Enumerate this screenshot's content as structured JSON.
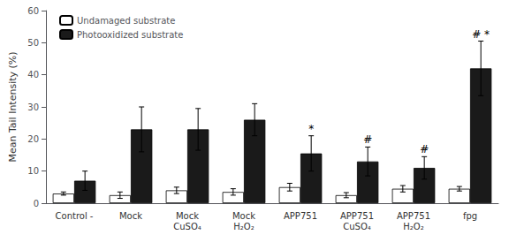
{
  "chart_data": {
    "type": "bar",
    "ylabel": "Mean Tail Intensity (%)",
    "categories": [
      "Control -",
      "Mock",
      "Mock\nCuSO₄",
      "Mock\nH₂O₂",
      "APP751",
      "APP751\nCuSO₄",
      "APP751\nH₂O₂",
      "fpg"
    ],
    "series": [
      {
        "name": "Undamaged substrate",
        "color": "#ffffff",
        "values": [
          3.0,
          2.5,
          4.0,
          3.5,
          5.0,
          2.5,
          4.5,
          4.5
        ],
        "errors": [
          0.5,
          1.0,
          1.0,
          1.0,
          1.2,
          0.8,
          1.0,
          0.7
        ]
      },
      {
        "name": "Photooxidized substrate",
        "color": "#1a1a1a",
        "values": [
          7.0,
          23.0,
          23.0,
          26.0,
          15.5,
          13.0,
          11.0,
          42.0
        ],
        "errors": [
          3.0,
          7.0,
          6.5,
          5.0,
          5.5,
          4.5,
          3.5,
          8.5
        ]
      }
    ],
    "annotations": [
      {
        "category": "APP751",
        "series": "Photooxidized substrate",
        "text": "*"
      },
      {
        "category": "APP751\nCuSO₄",
        "series": "Photooxidized substrate",
        "text": "#"
      },
      {
        "category": "APP751\nH₂O₂",
        "series": "Photooxidized substrate",
        "text": "#"
      },
      {
        "category": "fpg",
        "series": "Photooxidized substrate",
        "text": "# *"
      }
    ],
    "ylim": [
      0,
      60
    ],
    "yticks": [
      0,
      10,
      20,
      30,
      40,
      50,
      60
    ],
    "legend": "upper left",
    "grid": false
  }
}
